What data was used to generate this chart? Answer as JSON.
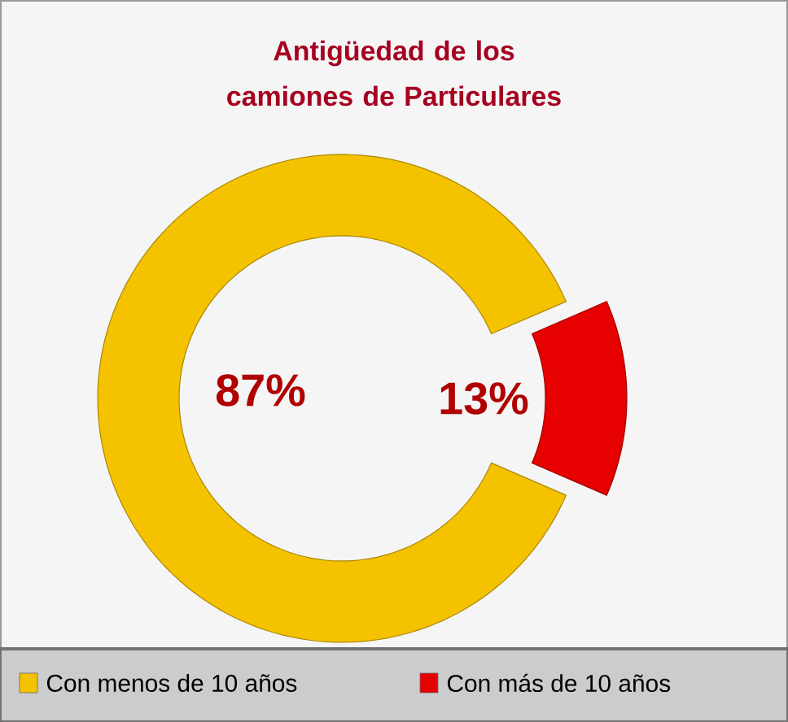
{
  "chart_data": {
    "type": "donut",
    "title": "Antigüedad de los camiones de Particulares",
    "categories": [
      "Con menos de 10 años",
      "Con más de 10 años"
    ],
    "values": [
      87,
      13
    ],
    "value_labels": [
      "87%",
      "13%"
    ],
    "colors": [
      "#f5c200",
      "#e60000"
    ],
    "legend": "bottom"
  }
}
